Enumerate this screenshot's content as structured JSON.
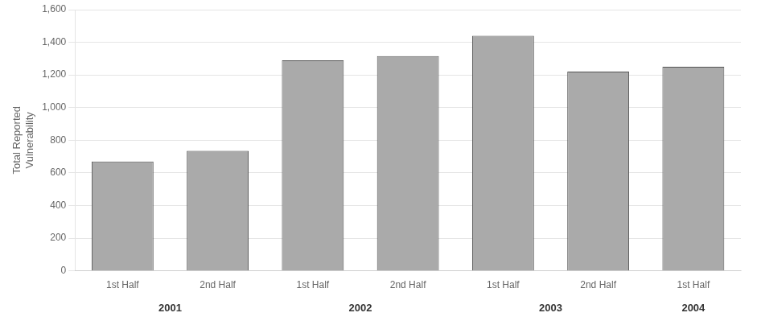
{
  "chart_data": {
    "type": "bar",
    "categories": [
      "1st Half",
      "2nd Half",
      "1st Half",
      "2nd Half",
      "1st Half",
      "2nd Half",
      "1st Half"
    ],
    "values": [
      670,
      735,
      1290,
      1315,
      1440,
      1220,
      1250
    ],
    "color": "#aaaaaa",
    "ylabel": "Total Reported\nVulnerability",
    "ylim": [
      0,
      1600
    ],
    "yticks": [
      0,
      200,
      400,
      600,
      800,
      {
        "value": 1000,
        "label": "1,000"
      },
      {
        "value": 1200,
        "label": "1,200"
      },
      {
        "value": 1400,
        "label": "1,400"
      },
      {
        "value": 1600,
        "label": "1,600"
      }
    ],
    "grid": true,
    "annotations": [
      {
        "text": "2001",
        "x": 0.5
      },
      {
        "text": "2002",
        "x": 2.5
      },
      {
        "text": "2003",
        "x": 4.5
      },
      {
        "text": "2004",
        "x": 6.0
      }
    ]
  }
}
